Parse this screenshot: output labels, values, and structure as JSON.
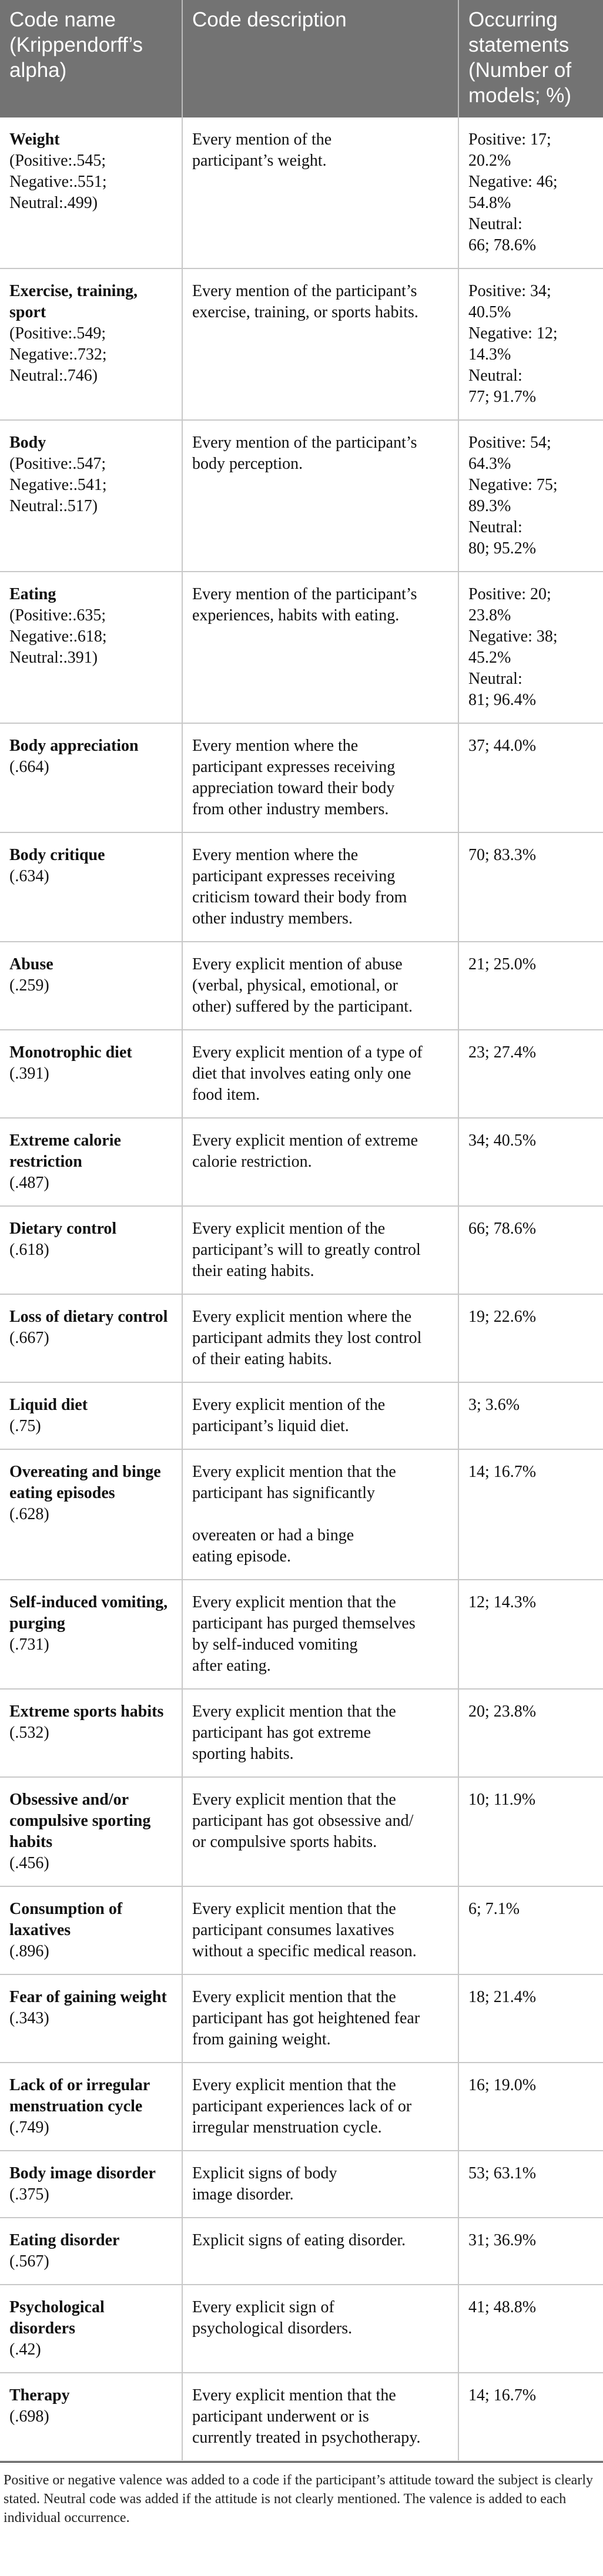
{
  "table": {
    "headers": [
      "Code name (Krippendorff’s alpha)",
      "Code description",
      "Occurring statements (Number of models; %)"
    ],
    "rows": [
      {
        "name": "Weight",
        "alpha": [
          "(Positive:.545;",
          "Negative:.551;",
          "Neutral:.499)"
        ],
        "desc": [
          "Every mention of the",
          "participant’s weight."
        ],
        "occ": [
          "Positive: 17;",
          "20.2%",
          "Negative: 46;",
          "54.8%",
          "Neutral:",
          "66; 78.6%"
        ]
      },
      {
        "name": "Exercise, training, sport",
        "alpha": [
          "(Positive:.549;",
          "Negative:.732;",
          "Neutral:.746)"
        ],
        "desc": [
          "Every mention of the participant’s",
          "exercise, training, or sports habits."
        ],
        "occ": [
          "Positive: 34;",
          "40.5%",
          "Negative: 12;",
          "14.3%",
          "Neutral:",
          "77; 91.7%"
        ]
      },
      {
        "name": "Body",
        "alpha": [
          "(Positive:.547;",
          "Negative:.541;",
          "Neutral:.517)"
        ],
        "desc": [
          "Every mention of the participant’s",
          "body perception."
        ],
        "occ": [
          "Positive: 54;",
          "64.3%",
          "Negative: 75;",
          "89.3%",
          "Neutral:",
          "80; 95.2%"
        ]
      },
      {
        "name": "Eating",
        "alpha": [
          "(Positive:.635;",
          "Negative:.618;",
          "Neutral:.391)"
        ],
        "desc": [
          "Every mention of the participant’s",
          "experiences, habits with eating."
        ],
        "occ": [
          "Positive: 20;",
          "23.8%",
          "Negative: 38;",
          "45.2%",
          "Neutral:",
          "81; 96.4%"
        ]
      },
      {
        "name": "Body appreciation",
        "alpha": [
          "(.664)"
        ],
        "desc": [
          "Every mention where the",
          "participant expresses receiving",
          "appreciation toward their body",
          "from other industry members."
        ],
        "occ": [
          "37; 44.0%"
        ]
      },
      {
        "name": "Body critique",
        "alpha": [
          "(.634)"
        ],
        "desc": [
          "Every mention where the",
          "participant expresses receiving",
          "criticism toward their body from",
          "other industry members."
        ],
        "occ": [
          "70; 83.3%"
        ]
      },
      {
        "name": "Abuse",
        "alpha": [
          "(.259)"
        ],
        "desc": [
          "Every explicit mention of abuse",
          "(verbal, physical, emotional, or",
          "other) suffered by the participant."
        ],
        "occ": [
          "21; 25.0%"
        ]
      },
      {
        "name": "Monotrophic diet",
        "alpha": [
          "(.391)"
        ],
        "desc": [
          "Every explicit mention of a type of",
          "diet that involves eating only one",
          "food item."
        ],
        "occ": [
          "23; 27.4%"
        ]
      },
      {
        "name": "Extreme calorie restriction",
        "alpha": [
          "(.487)"
        ],
        "desc": [
          "Every explicit mention of extreme",
          "calorie restriction."
        ],
        "occ": [
          "34; 40.5%"
        ]
      },
      {
        "name": "Dietary control",
        "alpha": [
          "(.618)"
        ],
        "desc": [
          "Every explicit mention of the",
          "participant’s will to greatly control",
          "their eating habits."
        ],
        "occ": [
          "66; 78.6%"
        ]
      },
      {
        "name": "Loss of dietary control",
        "alpha": [
          "(.667)"
        ],
        "desc": [
          "Every explicit mention where the",
          "participant admits they lost control",
          "of their eating habits."
        ],
        "occ": [
          "19; 22.6%"
        ]
      },
      {
        "name": "Liquid diet",
        "alpha": [
          "(.75)"
        ],
        "desc": [
          "Every explicit mention of the",
          "participant’s liquid diet."
        ],
        "occ": [
          "3; 3.6%"
        ]
      },
      {
        "name": "Overeating and binge eating episodes",
        "alpha": [
          "(.628)"
        ],
        "desc": [
          "Every explicit mention that the",
          "participant has significantly",
          "",
          "overeaten or had a binge",
          "eating episode."
        ],
        "occ": [
          "14; 16.7%"
        ]
      },
      {
        "name": "Self-induced vomiting, purging",
        "alpha": [
          "(.731)"
        ],
        "desc": [
          "Every explicit mention that the",
          "participant has purged themselves",
          "by self-induced vomiting",
          "after eating."
        ],
        "occ": [
          "12; 14.3%"
        ]
      },
      {
        "name": "Extreme sports habits",
        "alpha": [
          "(.532)"
        ],
        "desc": [
          "Every explicit mention that the",
          "participant has got extreme",
          "sporting habits."
        ],
        "occ": [
          "20; 23.8%"
        ]
      },
      {
        "name": "Obsessive and/or compulsive sporting habits",
        "alpha": [
          "(.456)"
        ],
        "desc": [
          "Every explicit mention that the",
          "participant has got obsessive and/",
          "or compulsive sports habits."
        ],
        "occ": [
          "10; 11.9%"
        ]
      },
      {
        "name": "Consumption of laxatives",
        "alpha": [
          "(.896)"
        ],
        "desc": [
          "Every explicit mention that the",
          "participant consumes laxatives",
          "without a specific medical reason."
        ],
        "occ": [
          "6; 7.1%"
        ]
      },
      {
        "name": "Fear of gaining weight",
        "alpha": [
          "(.343)"
        ],
        "desc": [
          "Every explicit mention that the",
          "participant has got heightened fear",
          "from gaining weight."
        ],
        "occ": [
          "18; 21.4%"
        ]
      },
      {
        "name": "Lack of or irregular menstruation cycle",
        "alpha": [
          "(.749)"
        ],
        "desc": [
          "Every explicit mention that the",
          "participant experiences lack of or",
          "irregular menstruation cycle."
        ],
        "occ": [
          "16; 19.0%"
        ]
      },
      {
        "name": "Body image disorder",
        "alpha": [
          "(.375)"
        ],
        "desc": [
          "Explicit signs of body",
          "image disorder."
        ],
        "occ": [
          "53; 63.1%"
        ]
      },
      {
        "name": "Eating disorder",
        "alpha": [
          "(.567)"
        ],
        "desc": [
          "Explicit signs of eating disorder."
        ],
        "occ": [
          "31; 36.9%"
        ]
      },
      {
        "name": "Psychological disorders",
        "alpha": [
          "(.42)"
        ],
        "desc": [
          "Every explicit sign of",
          "psychological disorders."
        ],
        "occ": [
          "41; 48.8%"
        ]
      },
      {
        "name": "Therapy",
        "alpha": [
          "(.698)"
        ],
        "desc": [
          "Every explicit mention that the",
          "participant underwent or is",
          "currently treated in psychotherapy."
        ],
        "occ": [
          "14; 16.7%"
        ]
      }
    ]
  },
  "footnote": "Positive or negative valence was added to a code if the participant’s attitude toward the subject is clearly stated. Neutral code was added if the attitude is not clearly mentioned. The valence is added to each individual occurrence."
}
